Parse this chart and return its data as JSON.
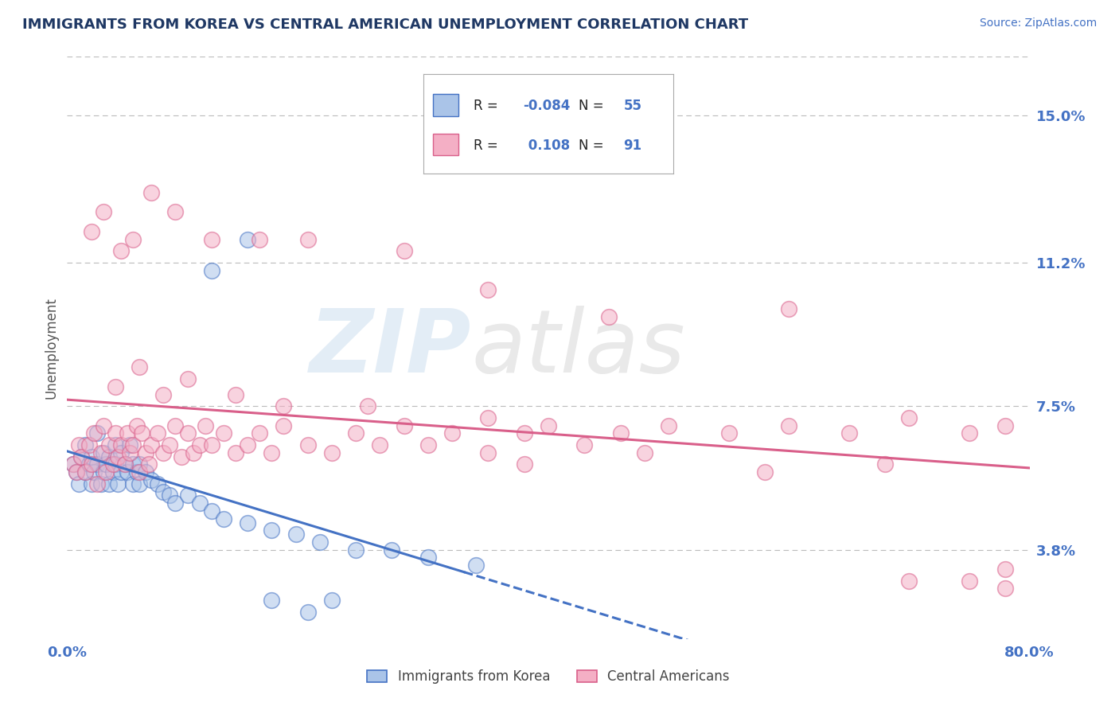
{
  "title": "IMMIGRANTS FROM KOREA VS CENTRAL AMERICAN UNEMPLOYMENT CORRELATION CHART",
  "source": "Source: ZipAtlas.com",
  "ylabel": "Unemployment",
  "ytick_labels": [
    "3.8%",
    "7.5%",
    "11.2%",
    "15.0%"
  ],
  "ytick_values": [
    0.038,
    0.075,
    0.112,
    0.15
  ],
  "xmin": 0.0,
  "xmax": 0.8,
  "ymin": 0.015,
  "ymax": 0.165,
  "R_korea": -0.084,
  "N_korea": 55,
  "R_central": 0.108,
  "N_central": 91,
  "color_korea": "#aac4e8",
  "color_central": "#f4afc5",
  "trendline_korea_color": "#4472c4",
  "trendline_central_color": "#d95f8a",
  "title_color": "#1f3864",
  "label_color": "#4472c4",
  "legend_text_color": "#222222",
  "background_color": "#ffffff",
  "grid_color": "#bbbbbb",
  "korea_x": [
    0.005,
    0.008,
    0.01,
    0.012,
    0.015,
    0.015,
    0.018,
    0.02,
    0.02,
    0.022,
    0.025,
    0.025,
    0.028,
    0.03,
    0.03,
    0.032,
    0.035,
    0.035,
    0.038,
    0.04,
    0.04,
    0.042,
    0.045,
    0.045,
    0.048,
    0.05,
    0.052,
    0.055,
    0.055,
    0.058,
    0.06,
    0.06,
    0.065,
    0.07,
    0.075,
    0.08,
    0.085,
    0.09,
    0.1,
    0.11,
    0.12,
    0.13,
    0.15,
    0.17,
    0.19,
    0.21,
    0.24,
    0.27,
    0.3,
    0.34,
    0.12,
    0.15,
    0.17,
    0.2,
    0.22
  ],
  "korea_y": [
    0.06,
    0.058,
    0.055,
    0.062,
    0.058,
    0.065,
    0.06,
    0.055,
    0.062,
    0.058,
    0.06,
    0.068,
    0.055,
    0.058,
    0.063,
    0.06,
    0.055,
    0.062,
    0.058,
    0.06,
    0.065,
    0.055,
    0.058,
    0.063,
    0.06,
    0.058,
    0.065,
    0.06,
    0.055,
    0.058,
    0.055,
    0.06,
    0.058,
    0.056,
    0.055,
    0.053,
    0.052,
    0.05,
    0.052,
    0.05,
    0.048,
    0.046,
    0.045,
    0.043,
    0.042,
    0.04,
    0.038,
    0.038,
    0.036,
    0.034,
    0.11,
    0.118,
    0.025,
    0.022,
    0.025
  ],
  "central_x": [
    0.005,
    0.008,
    0.01,
    0.012,
    0.015,
    0.018,
    0.02,
    0.022,
    0.025,
    0.028,
    0.03,
    0.032,
    0.035,
    0.038,
    0.04,
    0.042,
    0.045,
    0.048,
    0.05,
    0.052,
    0.055,
    0.058,
    0.06,
    0.062,
    0.065,
    0.068,
    0.07,
    0.075,
    0.08,
    0.085,
    0.09,
    0.095,
    0.1,
    0.105,
    0.11,
    0.115,
    0.12,
    0.13,
    0.14,
    0.15,
    0.16,
    0.17,
    0.18,
    0.2,
    0.22,
    0.24,
    0.26,
    0.28,
    0.3,
    0.32,
    0.35,
    0.38,
    0.4,
    0.43,
    0.46,
    0.5,
    0.55,
    0.6,
    0.65,
    0.7,
    0.75,
    0.78,
    0.04,
    0.06,
    0.08,
    0.1,
    0.14,
    0.18,
    0.25,
    0.35,
    0.02,
    0.03,
    0.045,
    0.055,
    0.07,
    0.09,
    0.12,
    0.16,
    0.2,
    0.28,
    0.38,
    0.48,
    0.58,
    0.68,
    0.78,
    0.35,
    0.45,
    0.6,
    0.7,
    0.75,
    0.78
  ],
  "central_y": [
    0.06,
    0.058,
    0.065,
    0.062,
    0.058,
    0.065,
    0.06,
    0.068,
    0.055,
    0.063,
    0.07,
    0.058,
    0.065,
    0.06,
    0.068,
    0.062,
    0.065,
    0.06,
    0.068,
    0.063,
    0.065,
    0.07,
    0.058,
    0.068,
    0.063,
    0.06,
    0.065,
    0.068,
    0.063,
    0.065,
    0.07,
    0.062,
    0.068,
    0.063,
    0.065,
    0.07,
    0.065,
    0.068,
    0.063,
    0.065,
    0.068,
    0.063,
    0.07,
    0.065,
    0.063,
    0.068,
    0.065,
    0.07,
    0.065,
    0.068,
    0.063,
    0.068,
    0.07,
    0.065,
    0.068,
    0.07,
    0.068,
    0.07,
    0.068,
    0.072,
    0.068,
    0.07,
    0.08,
    0.085,
    0.078,
    0.082,
    0.078,
    0.075,
    0.075,
    0.072,
    0.12,
    0.125,
    0.115,
    0.118,
    0.13,
    0.125,
    0.118,
    0.118,
    0.118,
    0.115,
    0.06,
    0.063,
    0.058,
    0.06,
    0.033,
    0.105,
    0.098,
    0.1,
    0.03,
    0.03,
    0.028
  ]
}
